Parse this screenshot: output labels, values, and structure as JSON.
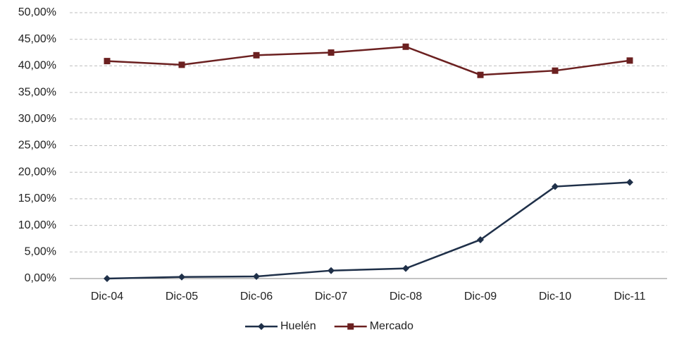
{
  "chart_data": {
    "type": "line",
    "categories": [
      "Dic-04",
      "Dic-05",
      "Dic-06",
      "Dic-07",
      "Dic-08",
      "Dic-09",
      "Dic-10",
      "Dic-11"
    ],
    "series": [
      {
        "name": "Huelén",
        "color": "#1f3049",
        "marker": "diamond",
        "values": [
          0.0,
          0.3,
          0.4,
          1.5,
          1.9,
          7.3,
          17.3,
          18.1
        ]
      },
      {
        "name": "Mercado",
        "color": "#6b2020",
        "marker": "square",
        "values": [
          40.9,
          40.2,
          42.0,
          42.5,
          43.6,
          38.3,
          39.1,
          41.0
        ]
      }
    ],
    "ylim": [
      0,
      50
    ],
    "yticks": [
      {
        "value": 0,
        "label": "0,00%"
      },
      {
        "value": 5,
        "label": "5,00%"
      },
      {
        "value": 10,
        "label": "10,00%"
      },
      {
        "value": 15,
        "label": "15,00%"
      },
      {
        "value": 20,
        "label": "20,00%"
      },
      {
        "value": 25,
        "label": "25,00%"
      },
      {
        "value": 30,
        "label": "30,00%"
      },
      {
        "value": 35,
        "label": "35,00%"
      },
      {
        "value": 40,
        "label": "40,00%"
      },
      {
        "value": 45,
        "label": "45,00%"
      },
      {
        "value": 50,
        "label": "50,00%"
      }
    ],
    "grid": true,
    "legend": "bottom"
  }
}
